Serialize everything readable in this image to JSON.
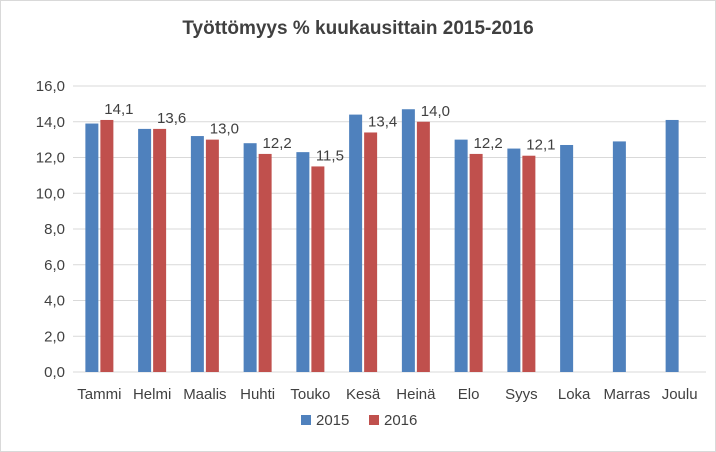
{
  "chart_data": {
    "type": "bar",
    "title": "Työttömyys % kuukausittain 2015-2016",
    "xlabel": "",
    "ylabel": "",
    "ylim": [
      0,
      16
    ],
    "y_ticks": [
      "0,0",
      "2,0",
      "4,0",
      "6,0",
      "8,0",
      "10,0",
      "12,0",
      "14,0",
      "16,0"
    ],
    "categories": [
      "Tammi",
      "Helmi",
      "Maalis",
      "Huhti",
      "Touko",
      "Kesä",
      "Heinä",
      "Elo",
      "Syys",
      "Loka",
      "Marras",
      "Joulu"
    ],
    "series": [
      {
        "name": "2015",
        "color": "#4f81bd",
        "values": [
          13.9,
          13.6,
          13.2,
          12.8,
          12.3,
          14.4,
          14.7,
          13.0,
          12.5,
          12.7,
          12.9,
          14.1
        ]
      },
      {
        "name": "2016",
        "color": "#c0504d",
        "values": [
          14.1,
          13.6,
          13.0,
          12.2,
          11.5,
          13.4,
          14.0,
          12.2,
          12.1,
          null,
          null,
          null
        ],
        "data_labels": [
          "14,1",
          "13,6",
          "13,0",
          "12,2",
          "11,5",
          "13,4",
          "14,0",
          "12,2",
          "12,1",
          "",
          "",
          ""
        ]
      }
    ],
    "grid": true,
    "legend_position": "bottom"
  }
}
